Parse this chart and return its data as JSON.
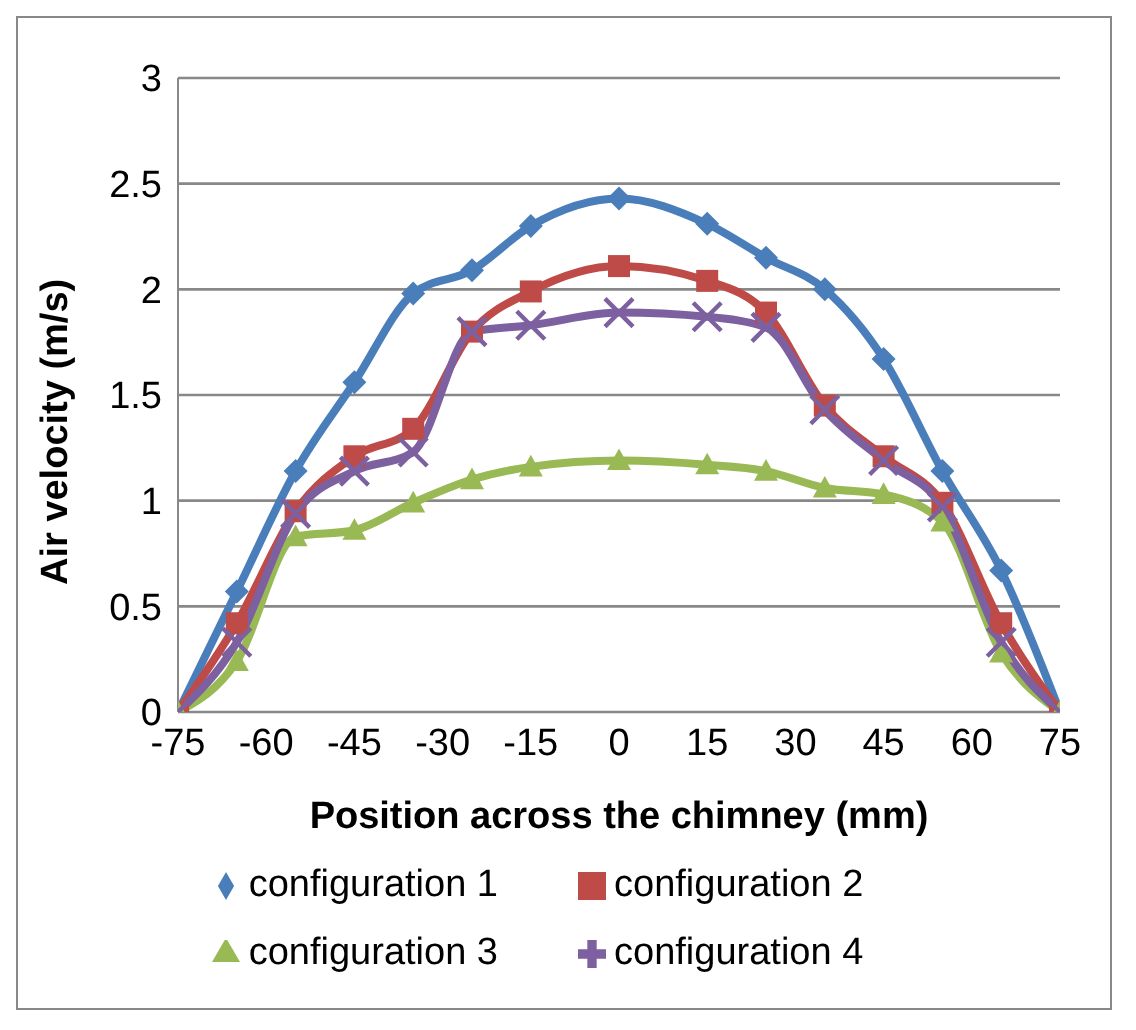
{
  "chart_data": {
    "type": "line",
    "xlabel": "Position across the chimney (mm)",
    "ylabel": "Air velocity (m/s)",
    "x": [
      -75,
      -65,
      -55,
      -45,
      -35,
      -25,
      -15,
      0,
      15,
      25,
      35,
      45,
      55,
      65,
      75
    ],
    "xlim": [
      -75,
      75
    ],
    "xticks": [
      -75,
      -60,
      -45,
      -30,
      -15,
      0,
      15,
      30,
      45,
      60,
      75
    ],
    "ylim": [
      0,
      3
    ],
    "yticks": [
      0,
      0.5,
      1,
      1.5,
      2,
      2.5,
      3
    ],
    "grid": "y",
    "legend": "bottom",
    "line_style": "solid",
    "series": [
      {
        "name": "configuration 1",
        "color": "#4a7ebb",
        "marker": "diamond",
        "values": [
          0,
          0.57,
          1.14,
          1.56,
          1.98,
          2.09,
          2.3,
          2.43,
          2.31,
          2.15,
          2.0,
          1.67,
          1.14,
          0.67,
          0
        ]
      },
      {
        "name": "configuration 2",
        "color": "#be4b48",
        "marker": "square",
        "values": [
          0,
          0.42,
          0.95,
          1.21,
          1.34,
          1.8,
          1.99,
          2.11,
          2.04,
          1.89,
          1.45,
          1.21,
          0.99,
          0.42,
          0
        ]
      },
      {
        "name": "configuration 3",
        "color": "#98b954",
        "marker": "triangle",
        "values": [
          0,
          0.24,
          0.83,
          0.86,
          0.99,
          1.1,
          1.16,
          1.19,
          1.17,
          1.14,
          1.06,
          1.03,
          0.9,
          0.28,
          0
        ]
      },
      {
        "name": "configuration 4",
        "color": "#7d60a0",
        "marker": "cross",
        "values": [
          0,
          0.33,
          0.94,
          1.14,
          1.23,
          1.8,
          1.83,
          1.89,
          1.87,
          1.82,
          1.43,
          1.19,
          0.97,
          0.33,
          0
        ]
      }
    ]
  }
}
